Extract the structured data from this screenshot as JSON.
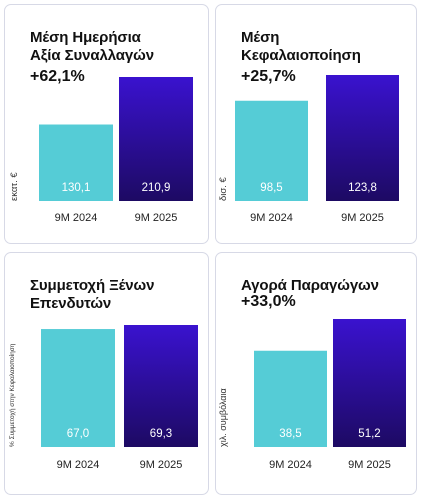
{
  "colors": {
    "bar_2024": "#55ccd6",
    "bar_2025_top": "#3a12cf",
    "bar_2025_bottom": "#1d0a63",
    "border": "#d7d9e6"
  },
  "chart_data": [
    {
      "type": "bar",
      "title": "Μέση Ημερήσια\nΑξία Συναλλαγών",
      "change": "+62,1%",
      "ylabel": "εκατ. €",
      "categories": [
        "9M 2024",
        "9M 2025"
      ],
      "values": [
        130.1,
        210.9
      ],
      "value_labels": [
        "130,1",
        "210,9"
      ]
    },
    {
      "type": "bar",
      "title": "Μέση\nΚεφαλαιοποίηση",
      "change": "+25,7%",
      "ylabel": "δισ. €",
      "categories": [
        "9M 2024",
        "9M 2025"
      ],
      "values": [
        98.5,
        123.8
      ],
      "value_labels": [
        "98,5",
        "123,8"
      ]
    },
    {
      "type": "bar",
      "title": "Συμμετοχή Ξένων\nΕπενδυτών",
      "change": "",
      "ylabel": "% Συμμετοχή στην Κεφαλαιοποίηση",
      "categories": [
        "9M 2024",
        "9M 2025"
      ],
      "values": [
        67.0,
        69.3
      ],
      "value_labels": [
        "67,0",
        "69,3"
      ]
    },
    {
      "type": "bar",
      "title": "Αγορά Παραγώγων",
      "change": "+33,0%",
      "ylabel": "χιλ. συμβόλαια",
      "categories": [
        "9M 2024",
        "9M 2025"
      ],
      "values": [
        38.5,
        51.2
      ],
      "value_labels": [
        "38,5",
        "51,2"
      ]
    }
  ]
}
